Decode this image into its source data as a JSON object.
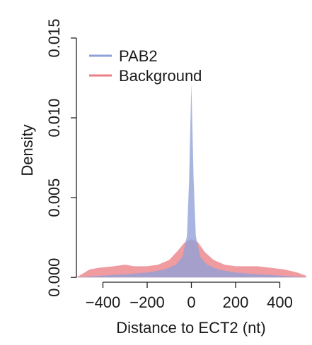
{
  "chart_data": {
    "type": "area",
    "title": "",
    "xlabel": "Distance to ECT2 (nt)",
    "ylabel": "Density",
    "xlim": [
      -520,
      520
    ],
    "ylim": [
      -0.0003,
      0.0165
    ],
    "x_ticks": [
      -400,
      -200,
      0,
      200,
      400
    ],
    "x_tick_labels": [
      "−400",
      "−200",
      "0",
      "200",
      "400"
    ],
    "y_ticks": [
      0.0,
      0.005,
      0.01,
      0.015
    ],
    "y_tick_labels": [
      "0.000",
      "0.005",
      "0.010",
      "0.015"
    ],
    "grid": false,
    "legend_position": "top-left",
    "series": [
      {
        "name": "PAB2",
        "color": "#8fa0d8",
        "x": [
          -520,
          -420,
          -300,
          -200,
          -120,
          -70,
          -40,
          -20,
          -10,
          0,
          10,
          20,
          40,
          70,
          120,
          200,
          300,
          420,
          520
        ],
        "y": [
          0.0,
          0.0001,
          0.0002,
          0.0003,
          0.0005,
          0.0008,
          0.0013,
          0.0026,
          0.0062,
          0.0122,
          0.0062,
          0.0026,
          0.0013,
          0.0008,
          0.0005,
          0.0003,
          0.0002,
          0.0001,
          0.0
        ]
      },
      {
        "name": "Background",
        "color": "#ea7f84",
        "x": [
          -520,
          -460,
          -420,
          -350,
          -300,
          -260,
          -200,
          -150,
          -100,
          -60,
          -30,
          0,
          30,
          60,
          100,
          150,
          200,
          240,
          300,
          360,
          420,
          480,
          520
        ],
        "y": [
          0.0,
          0.0005,
          0.0006,
          0.0007,
          0.0008,
          0.0007,
          0.0007,
          0.0008,
          0.0011,
          0.0017,
          0.0022,
          0.0024,
          0.0022,
          0.0016,
          0.0011,
          0.0008,
          0.0007,
          0.0007,
          0.0007,
          0.0006,
          0.0005,
          0.0003,
          0.0001
        ]
      }
    ]
  }
}
